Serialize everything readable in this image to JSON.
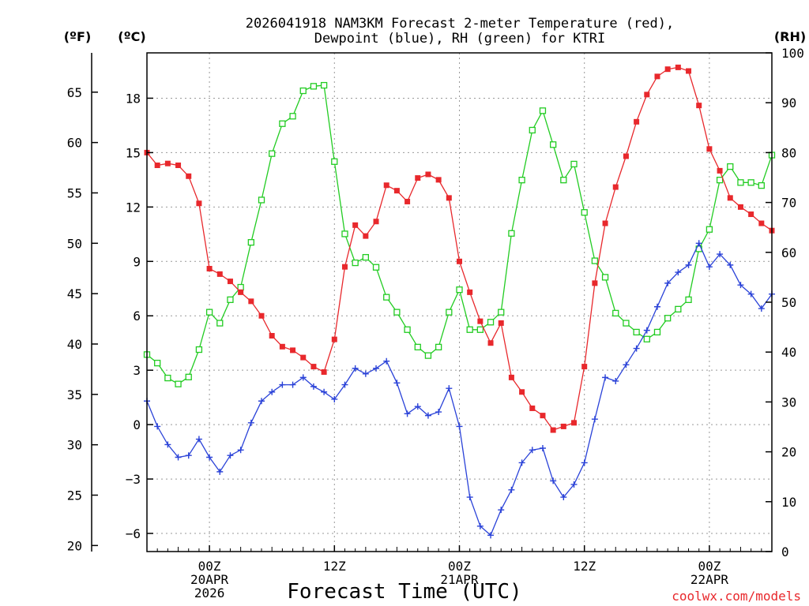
{
  "chart_data": {
    "type": "line",
    "title_line1": "2026041918 NAM3KM Forecast 2-meter Temperature (red),",
    "title_line2": "Dewpoint (blue), RH (green) for KTRI",
    "xlabel": "Forecast Time (UTC)",
    "credit": "coolwx.com/models",
    "units": {
      "fahrenheit": "(ºF)",
      "celsius": "(ºC)",
      "rh": "(RH)"
    },
    "x_start_hour": 18,
    "x_end_hour": 78,
    "x_ticks": [
      {
        "hour": 24,
        "lines": [
          "00Z",
          "20APR",
          "2026"
        ]
      },
      {
        "hour": 36,
        "lines": [
          "12Z"
        ]
      },
      {
        "hour": 48,
        "lines": [
          "00Z",
          "21APR"
        ]
      },
      {
        "hour": 60,
        "lines": [
          "12Z"
        ]
      },
      {
        "hour": 72,
        "lines": [
          "00Z",
          "22APR"
        ]
      }
    ],
    "celsius_axis": {
      "min": -7,
      "max": 20.5,
      "ticks": [
        -6,
        -3,
        0,
        3,
        6,
        9,
        12,
        15,
        18
      ]
    },
    "fahrenheit_ticks": [
      20,
      25,
      30,
      35,
      40,
      45,
      50,
      55,
      60,
      65
    ],
    "rh_axis": {
      "min": 0,
      "max": 100,
      "ticks": [
        0,
        10,
        20,
        30,
        40,
        50,
        60,
        70,
        80,
        90,
        100
      ]
    },
    "series": [
      {
        "name": "2-meter Temperature",
        "color": "#e8282c",
        "axis": "celsius",
        "marker": "filled-square",
        "values": [
          15.0,
          14.3,
          14.4,
          14.3,
          13.7,
          12.2,
          8.6,
          8.3,
          7.9,
          7.3,
          6.8,
          6.0,
          4.9,
          4.3,
          4.1,
          3.7,
          3.2,
          2.9,
          4.7,
          8.7,
          11.0,
          10.4,
          11.2,
          13.2,
          12.9,
          12.3,
          13.6,
          13.8,
          13.5,
          12.5,
          9.0,
          7.3,
          5.7,
          4.5,
          5.6,
          2.6,
          1.8,
          0.9,
          0.5,
          -0.3,
          -0.1,
          0.1,
          3.2,
          7.8,
          11.1,
          13.1,
          14.8,
          16.7,
          18.2,
          19.2,
          19.6,
          19.7,
          19.5,
          17.6,
          15.2,
          14.0,
          12.5,
          12.0,
          11.6,
          11.1,
          10.7
        ]
      },
      {
        "name": "Dewpoint",
        "color": "#2a42d8",
        "axis": "celsius",
        "marker": "plus",
        "values": [
          1.3,
          -0.1,
          -1.1,
          -1.8,
          -1.7,
          -0.8,
          -1.8,
          -2.6,
          -1.7,
          -1.4,
          0.1,
          1.3,
          1.8,
          2.2,
          2.2,
          2.6,
          2.1,
          1.8,
          1.4,
          2.2,
          3.1,
          2.8,
          3.1,
          3.5,
          2.3,
          0.6,
          1.0,
          0.5,
          0.7,
          2.0,
          -0.1,
          -4.0,
          -5.6,
          -6.1,
          -4.7,
          -3.6,
          -2.1,
          -1.4,
          -1.3,
          -3.1,
          -4.0,
          -3.3,
          -2.1,
          0.3,
          2.6,
          2.4,
          3.3,
          4.2,
          5.2,
          6.5,
          7.8,
          8.4,
          8.8,
          10.0,
          8.7,
          9.4,
          8.8,
          7.7,
          7.2,
          6.4,
          7.2
        ]
      },
      {
        "name": "RH",
        "color": "#22cc22",
        "axis": "rh",
        "marker": "open-square",
        "values": [
          39.5,
          37.8,
          34.8,
          33.6,
          35.0,
          40.5,
          48.0,
          45.8,
          50.5,
          53.0,
          62.0,
          70.5,
          79.8,
          85.8,
          87.3,
          92.4,
          93.3,
          93.5,
          78.2,
          63.7,
          57.9,
          59.0,
          57.0,
          51.0,
          48.0,
          44.5,
          41.0,
          39.3,
          41.0,
          48.0,
          52.5,
          44.5,
          44.5,
          46.0,
          48.0,
          63.8,
          74.5,
          84.5,
          88.4,
          81.6,
          74.5,
          77.7,
          68.0,
          58.3,
          55.0,
          47.8,
          45.8,
          44.0,
          42.6,
          44.0,
          46.8,
          48.6,
          50.5,
          60.7,
          64.6,
          74.5,
          77.2,
          74.0,
          74.0,
          73.4,
          79.5
        ]
      }
    ]
  }
}
